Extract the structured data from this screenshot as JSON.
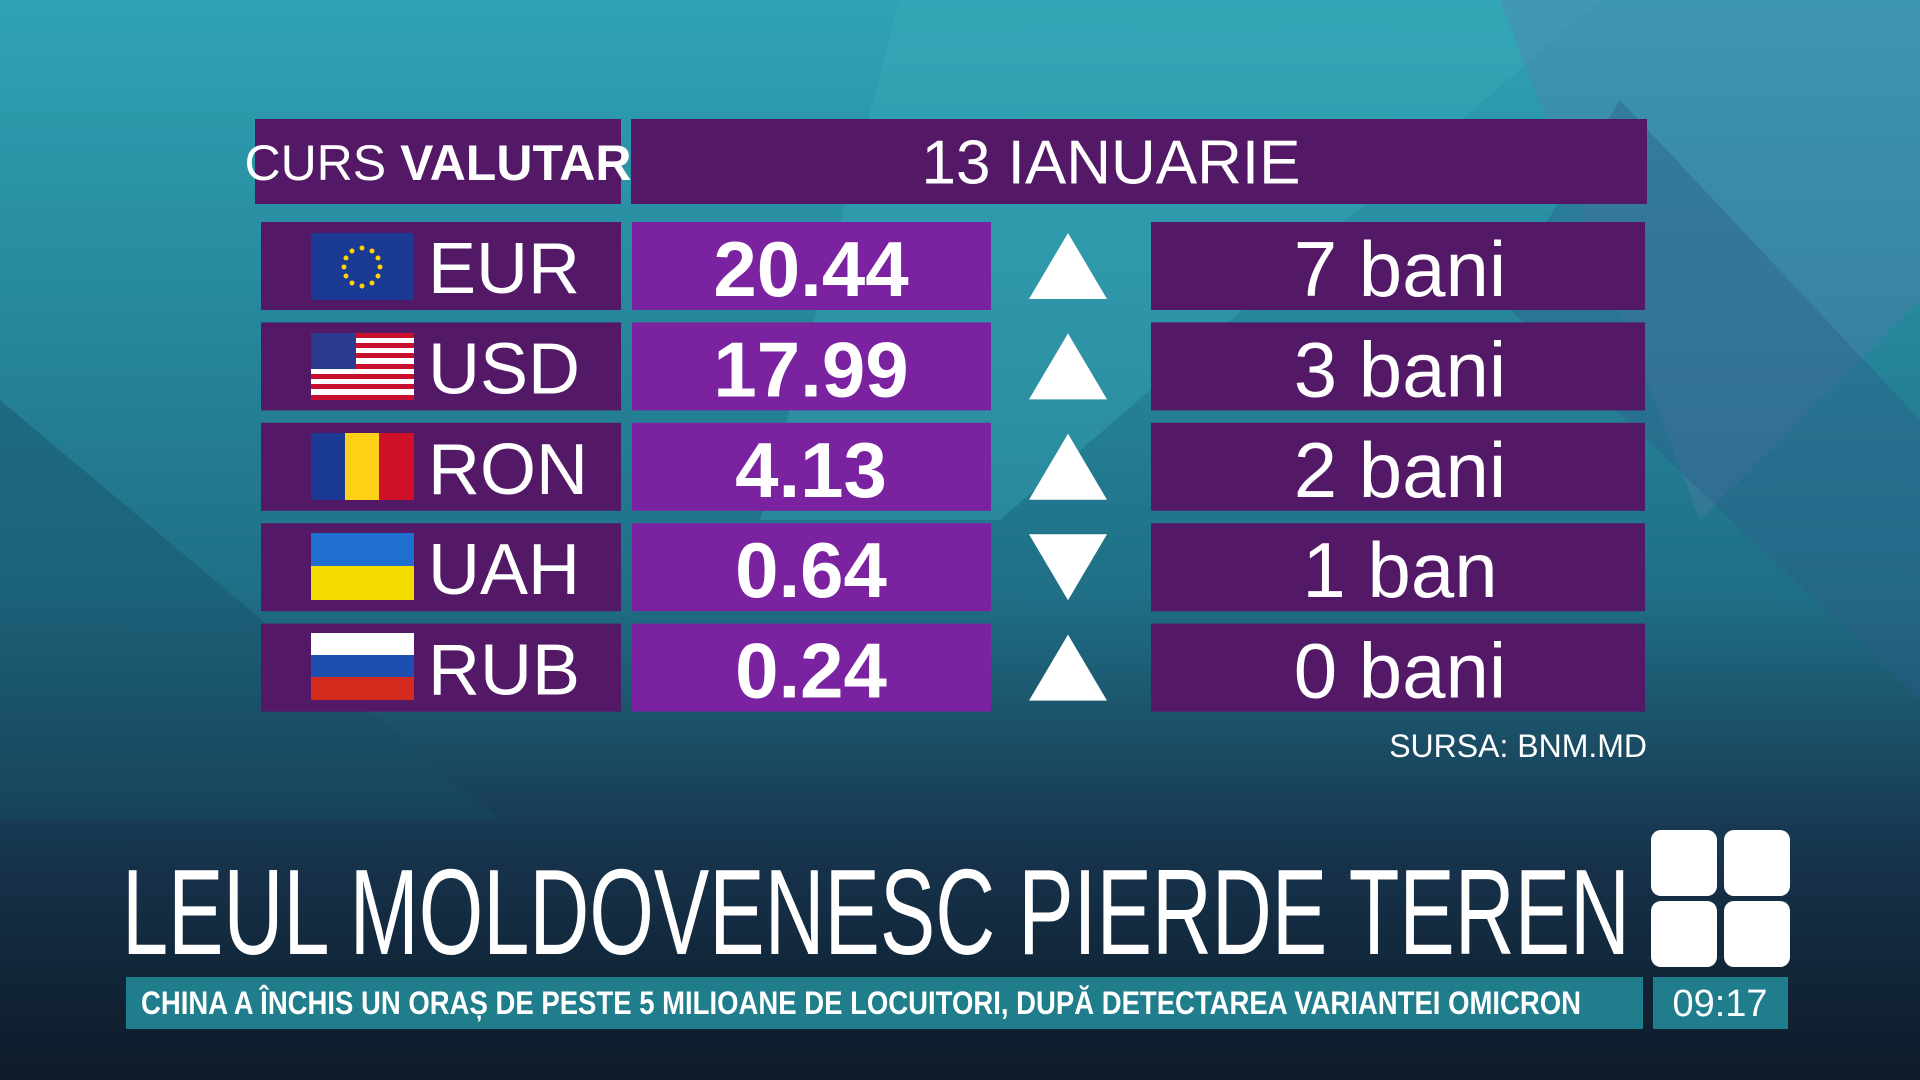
{
  "header": {
    "title_light": "CURS",
    "title_bold": "VALUTAR",
    "date": "13 IANUARIE"
  },
  "table": {
    "rows": [
      {
        "code": "EUR",
        "rate": "20.44",
        "direction": "up",
        "change": "7 bani"
      },
      {
        "code": "USD",
        "rate": "17.99",
        "direction": "up",
        "change": "3 bani"
      },
      {
        "code": "RON",
        "rate": "4.13",
        "direction": "up",
        "change": "2 bani"
      },
      {
        "code": "UAH",
        "rate": "0.64",
        "direction": "down",
        "change": "1 ban"
      },
      {
        "code": "RUB",
        "rate": "0.24",
        "direction": "up",
        "change": "0 bani"
      }
    ]
  },
  "source": "SURSA: BNM.MD",
  "headline": "LEUL MOLDOVENESC PIERDE TEREN",
  "ticker": "CHINA A ÎNCHIS UN ORAȘ DE PESTE 5 MILIOANE DE LOCUITORI, DUPĂ DETECTAREA VARIANTEI OMICRON",
  "clock": "09:17"
}
